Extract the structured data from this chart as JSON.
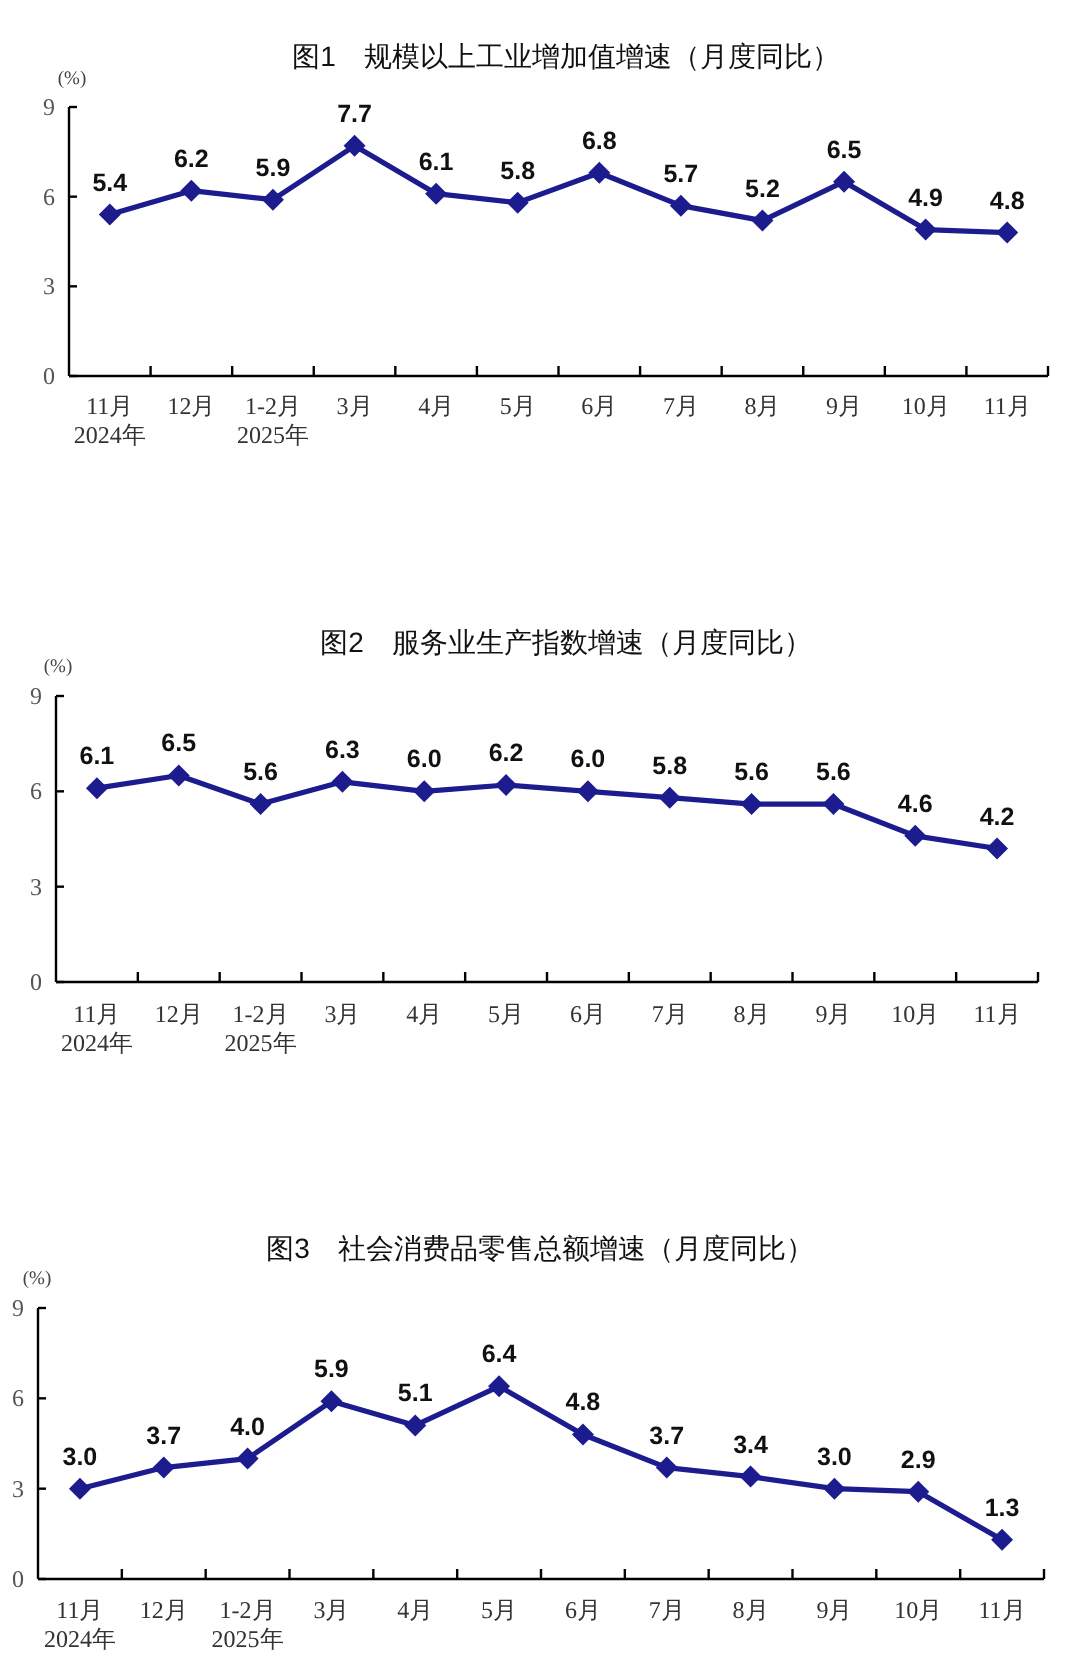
{
  "chart_data": [
    {
      "type": "line",
      "title": "图1　规模以上工业增加值增速（月度同比）",
      "ylabel": "(%)",
      "categories": [
        "11月\n2024年",
        "12月",
        "1-2月\n2025年",
        "3月",
        "4月",
        "5月",
        "6月",
        "7月",
        "8月",
        "9月",
        "10月",
        "11月"
      ],
      "values": [
        5.4,
        6.2,
        5.9,
        7.7,
        6.1,
        5.8,
        6.8,
        5.7,
        5.2,
        6.5,
        4.9,
        4.8
      ],
      "value_labels": [
        "5.4",
        "6.2",
        "5.9",
        "7.7",
        "6.1",
        "5.8",
        "6.8",
        "5.7",
        "5.2",
        "6.5",
        "4.9",
        "4.8"
      ],
      "color": "#1c1c8f",
      "marker": "diamond",
      "ylim": [
        0,
        9
      ],
      "yticks": [
        0,
        3,
        6,
        9
      ]
    },
    {
      "type": "line",
      "title": "图2　服务业生产指数增速（月度同比）",
      "ylabel": "(%)",
      "categories": [
        "11月\n2024年",
        "12月",
        "1-2月\n2025年",
        "3月",
        "4月",
        "5月",
        "6月",
        "7月",
        "8月",
        "9月",
        "10月",
        "11月"
      ],
      "values": [
        6.1,
        6.5,
        5.6,
        6.3,
        6.0,
        6.2,
        6.0,
        5.8,
        5.6,
        5.6,
        4.6,
        4.2
      ],
      "value_labels": [
        "6.1",
        "6.5",
        "5.6",
        "6.3",
        "6.0",
        "6.2",
        "6.0",
        "5.8",
        "5.6",
        "5.6",
        "4.6",
        "4.2"
      ],
      "color": "#1c1c8f",
      "marker": "diamond",
      "ylim": [
        0,
        9
      ],
      "yticks": [
        0,
        3,
        6,
        9
      ]
    },
    {
      "type": "line",
      "title": "图3　社会消费品零售总额增速（月度同比）",
      "ylabel": "(%)",
      "categories": [
        "11月\n2024年",
        "12月",
        "1-2月\n2025年",
        "3月",
        "4月",
        "5月",
        "6月",
        "7月",
        "8月",
        "9月",
        "10月",
        "11月"
      ],
      "values": [
        3.0,
        3.7,
        4.0,
        5.9,
        5.1,
        6.4,
        4.8,
        3.7,
        3.4,
        3.0,
        2.9,
        1.3
      ],
      "value_labels": [
        "3.0",
        "3.7",
        "4.0",
        "5.9",
        "5.1",
        "6.4",
        "4.8",
        "3.7",
        "3.4",
        "3.0",
        "2.9",
        "1.3"
      ],
      "color": "#1c1c8f",
      "marker": "diamond",
      "ylim": [
        0,
        9
      ],
      "yticks": [
        0,
        3,
        6,
        9
      ]
    }
  ]
}
